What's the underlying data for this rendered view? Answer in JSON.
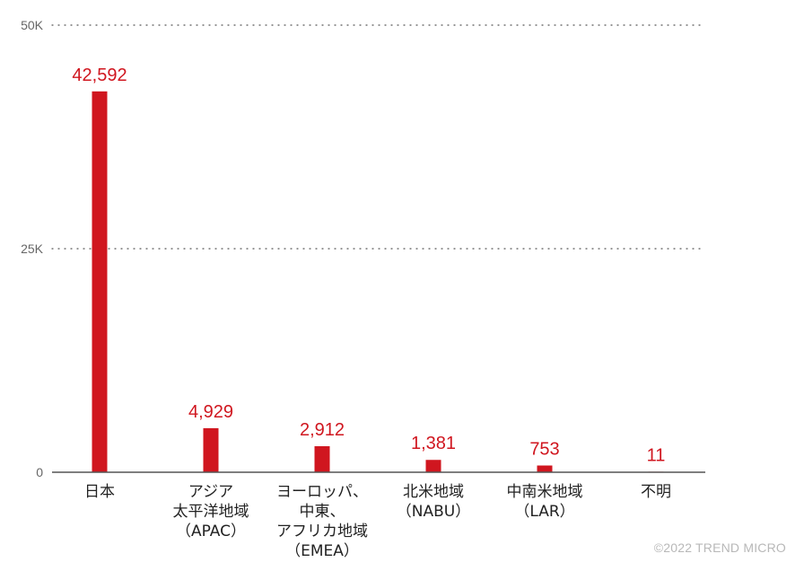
{
  "chart_data": {
    "type": "bar",
    "categories": [
      [
        "日本"
      ],
      [
        "アジア",
        "太平洋地域",
        "（APAC）"
      ],
      [
        "ヨーロッパ、",
        "中東、",
        "アフリカ地域",
        "（EMEA）"
      ],
      [
        "北米地域",
        "（NABU）"
      ],
      [
        "中南米地域",
        "（LAR）"
      ],
      [
        "不明"
      ]
    ],
    "values": [
      42592,
      4929,
      2912,
      1381,
      753,
      11
    ],
    "value_labels": [
      "42,592",
      "4,929",
      "2,912",
      "1,381",
      "753",
      "11"
    ],
    "yticks": [
      {
        "value": 0,
        "label": "0"
      },
      {
        "value": 25000,
        "label": "25K"
      },
      {
        "value": 50000,
        "label": "50K"
      }
    ],
    "ylim": [
      0,
      50000
    ],
    "grid": true,
    "title": "",
    "xlabel": "",
    "ylabel": "",
    "bar_color": "#d0161f",
    "value_label_color": "#d0161f"
  },
  "copyright": "©2022 TREND MICRO"
}
